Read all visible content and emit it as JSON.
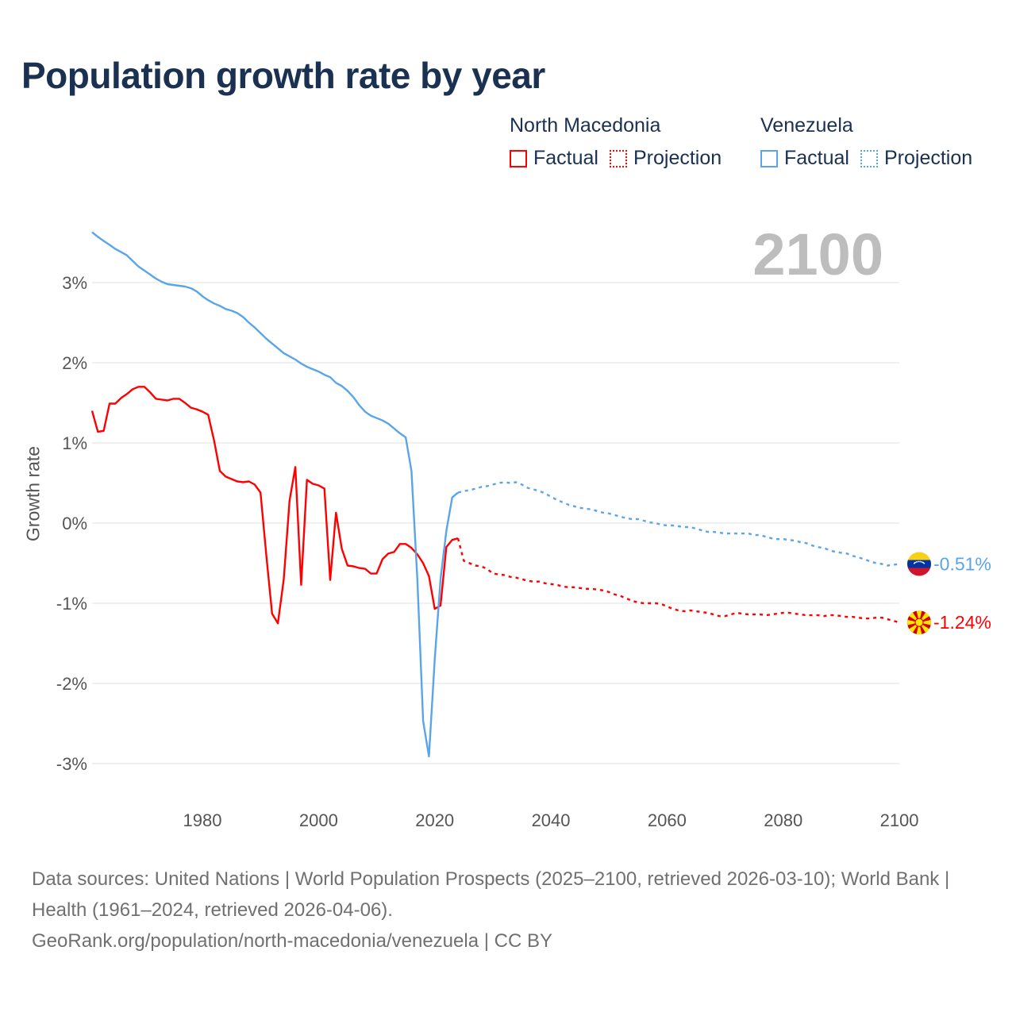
{
  "chart_data": {
    "type": "line",
    "title": "Population growth rate by year",
    "xlabel": "",
    "ylabel": "Growth rate",
    "xlim": [
      1961,
      2100
    ],
    "ylim": [
      -3.5,
      3.8
    ],
    "x_ticks": [
      1980,
      2000,
      2020,
      2040,
      2060,
      2080,
      2100
    ],
    "y_ticks": [
      3,
      2,
      1,
      0,
      -1,
      -2,
      -3
    ],
    "y_tick_labels": [
      "3%",
      "2%",
      "1%",
      "0%",
      "-1%",
      "-2%",
      "-3%"
    ],
    "grid": true,
    "current_year_label": "2100",
    "legend": {
      "placement": "top-right",
      "groups": [
        {
          "name": "North Macedonia",
          "factual": "Factual",
          "projection": "Projection"
        },
        {
          "name": "Venezuela",
          "factual": "Factual",
          "projection": "Projection"
        }
      ]
    },
    "series": [
      {
        "name": "North Macedonia",
        "kind": "factual",
        "color": "#ff0000",
        "start_year": 1961,
        "values": [
          1.4,
          1.14,
          1.15,
          1.49,
          1.49,
          1.56,
          1.61,
          1.67,
          1.7,
          1.7,
          1.63,
          1.55,
          1.54,
          1.53,
          1.55,
          1.55,
          1.5,
          1.44,
          1.42,
          1.39,
          1.35,
          1.03,
          0.65,
          0.58,
          0.55,
          0.52,
          0.51,
          0.52,
          0.48,
          0.38,
          -0.4,
          -1.13,
          -1.25,
          -0.7,
          0.28,
          0.7,
          -0.77,
          0.54,
          0.49,
          0.47,
          0.43,
          -0.71,
          0.13,
          -0.32,
          -0.53,
          -0.54,
          -0.56,
          -0.57,
          -0.63,
          -0.63,
          -0.45,
          -0.38,
          -0.36,
          -0.26,
          -0.26,
          -0.31,
          -0.39,
          -0.5,
          -0.66,
          -1.07,
          -1.03,
          -0.3,
          -0.21,
          -0.19
        ]
      },
      {
        "name": "North Macedonia",
        "kind": "projection",
        "color": "#ff0000",
        "start_year": 2024,
        "values": [
          -0.19,
          -0.47,
          -0.5,
          -0.53,
          -0.54,
          -0.57,
          -0.63,
          -0.64,
          -0.65,
          -0.67,
          -0.68,
          -0.7,
          -0.72,
          -0.73,
          -0.73,
          -0.75,
          -0.76,
          -0.77,
          -0.79,
          -0.8,
          -0.8,
          -0.81,
          -0.82,
          -0.82,
          -0.83,
          -0.84,
          -0.86,
          -0.89,
          -0.91,
          -0.94,
          -0.97,
          -0.99,
          -1.0,
          -1.0,
          -1.0,
          -1.01,
          -1.04,
          -1.07,
          -1.09,
          -1.1,
          -1.09,
          -1.1,
          -1.11,
          -1.12,
          -1.14,
          -1.16,
          -1.16,
          -1.14,
          -1.12,
          -1.13,
          -1.14,
          -1.14,
          -1.14,
          -1.15,
          -1.14,
          -1.13,
          -1.12,
          -1.12,
          -1.13,
          -1.14,
          -1.15,
          -1.15,
          -1.15,
          -1.16,
          -1.15,
          -1.15,
          -1.16,
          -1.17,
          -1.17,
          -1.18,
          -1.19,
          -1.19,
          -1.18,
          -1.18,
          -1.2,
          -1.22,
          -1.24
        ]
      },
      {
        "name": "Venezuela",
        "kind": "factual",
        "color": "#5aa5ea",
        "start_year": 1961,
        "values": [
          3.63,
          3.57,
          3.52,
          3.47,
          3.42,
          3.38,
          3.34,
          3.27,
          3.2,
          3.15,
          3.1,
          3.05,
          3.01,
          2.98,
          2.97,
          2.96,
          2.95,
          2.93,
          2.89,
          2.83,
          2.78,
          2.74,
          2.71,
          2.67,
          2.65,
          2.62,
          2.57,
          2.5,
          2.44,
          2.37,
          2.3,
          2.24,
          2.18,
          2.12,
          2.08,
          2.04,
          1.99,
          1.95,
          1.92,
          1.89,
          1.85,
          1.82,
          1.75,
          1.71,
          1.65,
          1.57,
          1.47,
          1.39,
          1.34,
          1.31,
          1.28,
          1.24,
          1.18,
          1.12,
          1.07,
          0.65,
          -0.7,
          -2.47,
          -2.91,
          -1.7,
          -0.7,
          -0.1,
          0.32,
          0.38
        ]
      },
      {
        "name": "Venezuela",
        "kind": "projection",
        "color": "#5aa5ea",
        "start_year": 2024,
        "values": [
          0.38,
          0.4,
          0.41,
          0.43,
          0.45,
          0.46,
          0.48,
          0.5,
          0.51,
          0.5,
          0.51,
          0.48,
          0.44,
          0.42,
          0.4,
          0.37,
          0.33,
          0.29,
          0.26,
          0.23,
          0.21,
          0.19,
          0.18,
          0.17,
          0.15,
          0.13,
          0.12,
          0.1,
          0.08,
          0.06,
          0.05,
          0.05,
          0.03,
          0.01,
          0.0,
          -0.02,
          -0.03,
          -0.03,
          -0.04,
          -0.05,
          -0.05,
          -0.07,
          -0.09,
          -0.11,
          -0.11,
          -0.12,
          -0.13,
          -0.13,
          -0.13,
          -0.13,
          -0.13,
          -0.15,
          -0.15,
          -0.17,
          -0.19,
          -0.2,
          -0.2,
          -0.21,
          -0.22,
          -0.24,
          -0.25,
          -0.28,
          -0.3,
          -0.31,
          -0.34,
          -0.36,
          -0.37,
          -0.38,
          -0.41,
          -0.43,
          -0.45,
          -0.48,
          -0.5,
          -0.51,
          -0.53,
          -0.52,
          -0.51
        ]
      }
    ],
    "end_labels": [
      {
        "country": "Venezuela",
        "label": "-0.51%",
        "value": -0.51,
        "color": "#5aa5ea"
      },
      {
        "country": "North Macedonia",
        "label": "-1.24%",
        "value": -1.24,
        "color": "#ff0000"
      }
    ]
  },
  "footer": {
    "sources": "Data sources: United Nations | World Population Prospects (2025–2100, retrieved 2026-03-10); World Bank | Health (1961–2024, retrieved 2026-04-06).",
    "credit": "GeoRank.org/population/north-macedonia/venezuela | CC BY"
  }
}
